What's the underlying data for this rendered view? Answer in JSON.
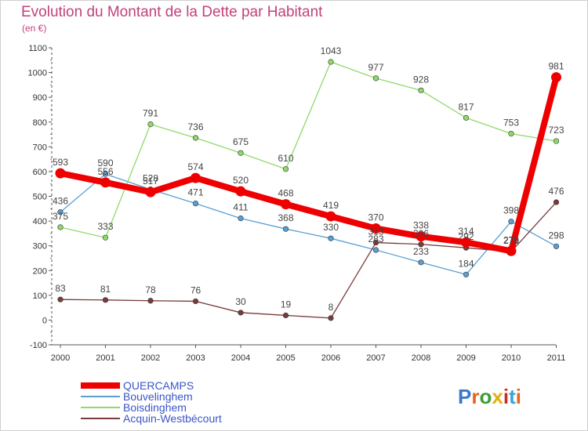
{
  "title": "Evolution du Montant de la Dette par Habitant",
  "unit": "(en €)",
  "logo_text": "Proxiti",
  "chart_data": {
    "type": "line",
    "title": "Evolution du Montant de la Dette par Habitant",
    "ylabel": "(en €)",
    "categories": [
      "2000",
      "2001",
      "2002",
      "2003",
      "2004",
      "2005",
      "2006",
      "2007",
      "2008",
      "2009",
      "2010",
      "2011"
    ],
    "y_ticks": [
      "1100",
      "1000",
      "900",
      "800",
      "700",
      "600",
      "500",
      "400",
      "300",
      "200",
      "100",
      "0",
      "-100"
    ],
    "ylim": [
      -100,
      1100
    ],
    "grid": false,
    "legend_position": "bottom-left",
    "series": [
      {
        "name": "Bouvelinghem",
        "color": "#5a9fd4",
        "values": [
          436,
          590,
          528,
          471,
          411,
          368,
          330,
          283,
          233,
          184,
          398,
          298
        ],
        "labels": [
          "436",
          "590",
          "528",
          "471",
          "411",
          "368",
          "330",
          "283",
          "233",
          "184",
          "398",
          "298"
        ]
      },
      {
        "name": "Boisdinghem",
        "color": "#8fd96a",
        "values": [
          375,
          333,
          791,
          736,
          675,
          610,
          1043,
          977,
          928,
          817,
          753,
          723
        ],
        "labels": [
          "375",
          "333",
          "791",
          "736",
          "675",
          "610",
          "1043",
          "977",
          "928",
          "817",
          "753",
          "723"
        ]
      },
      {
        "name": "Acquin-Westbécourt",
        "color": "#7a3b3b",
        "values": [
          83,
          81,
          78,
          76,
          30,
          19,
          8,
          313,
          306,
          292,
          276,
          476
        ],
        "labels": [
          "83",
          "81",
          "78",
          "76",
          "30",
          "19",
          "8",
          "313",
          "306",
          "292",
          "276",
          "476"
        ]
      },
      {
        "name": "QUERCAMPS",
        "color": "#ee0000",
        "values": [
          593,
          556,
          517,
          574,
          520,
          468,
          419,
          370,
          338,
          314,
          279,
          981
        ],
        "labels": [
          "593",
          "556",
          "517",
          "574",
          "520",
          "468",
          "419",
          "370",
          "338",
          "314",
          "279",
          "981"
        ]
      }
    ],
    "legend": [
      "QUERCAMPS",
      "Bouvelinghem",
      "Boisdinghem",
      "Acquin-Westbécourt"
    ]
  }
}
